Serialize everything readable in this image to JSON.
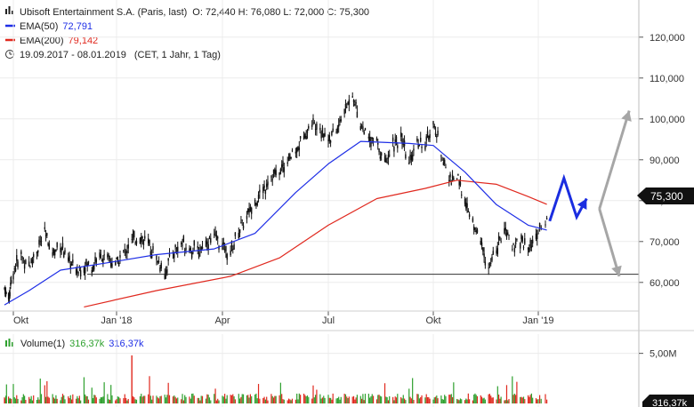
{
  "header": {
    "title": "Ubisoft Entertainment S.A. (Paris, last)",
    "ohlc": "O: 72,440  H: 76,080  L: 72,000  C: 75,300",
    "ema50_label": "EMA(50)",
    "ema50_value": "72,791",
    "ema200_label": "EMA(200)",
    "ema200_value": "79,142",
    "range": "19.09.2017 - 08.01.2019",
    "settings": "(CET, 1 Jahr, 1 Tag)"
  },
  "volume_header": {
    "label": "Volume(1)",
    "value1": "316,37k",
    "value2": "316,37k"
  },
  "price_badge": "75,300",
  "volume_badge": "316,37k",
  "colors": {
    "candles": "#111111",
    "ema50": "#1e2ee6",
    "ema200": "#e0281e",
    "volume_up": "#2ea02e",
    "volume_down": "#e0281e",
    "forecast_blue": "#1a2de0",
    "forecast_gray": "#a6a6a6",
    "support": "#333333"
  },
  "chart_data": [
    {
      "type": "candlestick",
      "title": "Ubisoft Entertainment S.A. (Paris, last)",
      "x_ticks": [
        "Okt",
        "Jan '18",
        "Apr",
        "Jul",
        "Okt",
        "Jan '19"
      ],
      "y_ticks": [
        "120,000",
        "110,000",
        "100,000",
        "90,000",
        "80,000",
        "70,000",
        "60,000"
      ],
      "ylim": [
        53,
        123
      ],
      "last_close": 75.3,
      "ohlc_last": {
        "open": 72.44,
        "high": 76.08,
        "low": 72.0,
        "close": 75.3
      },
      "support_level": 62.0,
      "series": [
        {
          "name": "Ubisoft Entertainment S.A.",
          "kind": "price_path",
          "points": [
            [
              "2017-09-19",
              58.5
            ],
            [
              "2017-09-25",
              56.0
            ],
            [
              "2017-10-02",
              63.0
            ],
            [
              "2017-10-09",
              66.5
            ],
            [
              "2017-10-16",
              64.0
            ],
            [
              "2017-10-23",
              68.0
            ],
            [
              "2017-10-30",
              72.0
            ],
            [
              "2017-11-06",
              67.0
            ],
            [
              "2017-11-13",
              69.5
            ],
            [
              "2017-11-20",
              65.0
            ],
            [
              "2017-11-27",
              63.0
            ],
            [
              "2017-12-04",
              64.5
            ],
            [
              "2017-12-11",
              64.0
            ],
            [
              "2017-12-18",
              66.5
            ],
            [
              "2017-12-25",
              66.0
            ],
            [
              "2018-01-01",
              64.5
            ],
            [
              "2018-01-08",
              67.0
            ],
            [
              "2018-01-15",
              70.0
            ],
            [
              "2018-01-22",
              71.5
            ],
            [
              "2018-01-29",
              69.0
            ],
            [
              "2018-02-05",
              66.0
            ],
            [
              "2018-02-12",
              62.5
            ],
            [
              "2018-02-19",
              67.5
            ],
            [
              "2018-02-26",
              69.5
            ],
            [
              "2018-03-05",
              68.5
            ],
            [
              "2018-03-12",
              67.5
            ],
            [
              "2018-03-19",
              70.0
            ],
            [
              "2018-03-26",
              71.0
            ],
            [
              "2018-04-02",
              69.0
            ],
            [
              "2018-04-09",
              67.0
            ],
            [
              "2018-04-16",
              73.0
            ],
            [
              "2018-04-23",
              76.0
            ],
            [
              "2018-04-30",
              80.0
            ],
            [
              "2018-05-07",
              82.5
            ],
            [
              "2018-05-14",
              86.0
            ],
            [
              "2018-05-21",
              87.0
            ],
            [
              "2018-05-28",
              90.0
            ],
            [
              "2018-06-04",
              92.0
            ],
            [
              "2018-06-11",
              96.0
            ],
            [
              "2018-06-18",
              99.0
            ],
            [
              "2018-06-25",
              98.0
            ],
            [
              "2018-07-02",
              95.0
            ],
            [
              "2018-07-09",
              97.0
            ],
            [
              "2018-07-16",
              102.0
            ],
            [
              "2018-07-23",
              106.0
            ],
            [
              "2018-07-30",
              99.0
            ],
            [
              "2018-08-06",
              95.0
            ],
            [
              "2018-08-13",
              94.0
            ],
            [
              "2018-08-20",
              89.0
            ],
            [
              "2018-08-27",
              94.0
            ],
            [
              "2018-09-03",
              95.0
            ],
            [
              "2018-09-10",
              89.0
            ],
            [
              "2018-09-17",
              95.0
            ],
            [
              "2018-09-24",
              93.0
            ],
            [
              "2018-10-01",
              99.0
            ],
            [
              "2018-10-08",
              92.0
            ],
            [
              "2018-10-15",
              85.0
            ],
            [
              "2018-10-22",
              86.0
            ],
            [
              "2018-10-29",
              80.0
            ],
            [
              "2018-11-05",
              74.0
            ],
            [
              "2018-11-12",
              70.0
            ],
            [
              "2018-11-19",
              63.0
            ],
            [
              "2018-11-26",
              68.0
            ],
            [
              "2018-12-03",
              73.0
            ],
            [
              "2018-12-10",
              69.0
            ],
            [
              "2018-12-17",
              70.5
            ],
            [
              "2018-12-24",
              68.0
            ],
            [
              "2019-01-02",
              72.0
            ],
            [
              "2019-01-08",
              75.3
            ]
          ]
        },
        {
          "name": "EMA(50)",
          "points": [
            [
              "2017-09-19",
              54.5
            ],
            [
              "2017-10-16",
              58.0
            ],
            [
              "2017-11-13",
              63.0
            ],
            [
              "2017-12-25",
              64.8
            ],
            [
              "2018-02-05",
              66.8
            ],
            [
              "2018-03-26",
              68.2
            ],
            [
              "2018-04-30",
              72.0
            ],
            [
              "2018-06-04",
              82.0
            ],
            [
              "2018-07-02",
              89.0
            ],
            [
              "2018-07-30",
              94.5
            ],
            [
              "2018-09-10",
              94.0
            ],
            [
              "2018-10-01",
              93.5
            ],
            [
              "2018-10-29",
              87.0
            ],
            [
              "2018-11-26",
              79.0
            ],
            [
              "2018-12-24",
              74.0
            ],
            [
              "2019-01-08",
              72.8
            ]
          ]
        },
        {
          "name": "EMA(200)",
          "points": [
            [
              "2017-12-04",
              54.0
            ],
            [
              "2018-02-05",
              58.0
            ],
            [
              "2018-04-09",
              61.5
            ],
            [
              "2018-05-21",
              66.0
            ],
            [
              "2018-07-02",
              74.0
            ],
            [
              "2018-08-13",
              80.5
            ],
            [
              "2018-09-24",
              83.0
            ],
            [
              "2018-10-22",
              85.0
            ],
            [
              "2018-11-26",
              84.0
            ],
            [
              "2018-12-24",
              81.0
            ],
            [
              "2019-01-08",
              79.1
            ]
          ]
        },
        {
          "name": "Volume(1)",
          "kind": "volume",
          "ylim": [
            0,
            5500000
          ],
          "y_ticks": [
            "5,00M"
          ],
          "last": 316370,
          "spike": {
            "date": "2018-01-15",
            "value": 4800000
          }
        }
      ],
      "annotations": [
        {
          "kind": "forecast",
          "color": "blue",
          "path": [
            [
              "2019-01-10",
              75.0
            ],
            [
              "2019-01-20",
              85.5
            ],
            [
              "2019-01-29",
              76.0
            ],
            [
              "2019-02-05",
              80.5
            ]
          ]
        },
        {
          "kind": "forecast",
          "color": "gray",
          "path": [
            [
              "2019-02-14",
              78.0
            ],
            [
              "2019-03-07",
              102.0
            ]
          ]
        },
        {
          "kind": "forecast",
          "color": "gray",
          "path": [
            [
              "2019-02-14",
              78.0
            ],
            [
              "2019-02-28",
              61.5
            ]
          ]
        }
      ]
    }
  ]
}
